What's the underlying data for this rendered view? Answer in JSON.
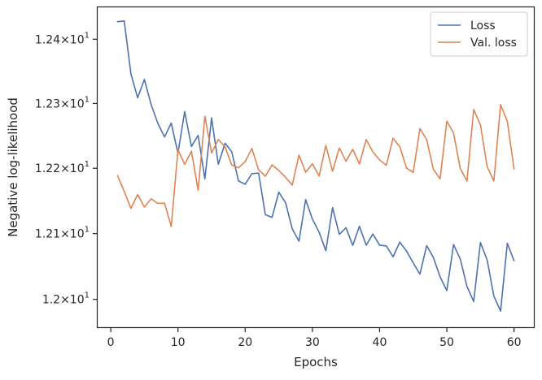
{
  "chart_data": {
    "type": "line",
    "xlabel": "Epochs",
    "ylabel": "Negative log-likelihood",
    "xlim": [
      -1.95,
      62.95
    ],
    "ylim": [
      11.958,
      12.45
    ],
    "y_scale": "log",
    "x_ticks": [
      0,
      10,
      20,
      30,
      40,
      50,
      60
    ],
    "x_tick_labels": [
      "0",
      "10",
      "20",
      "30",
      "40",
      "50",
      "60"
    ],
    "y_ticks": [
      12.0,
      12.1,
      12.2,
      12.3,
      12.4
    ],
    "y_tick_labels": [
      {
        "mantissa": "1.2",
        "exponent": "1"
      },
      {
        "mantissa": "1.21",
        "exponent": "1"
      },
      {
        "mantissa": "1.22",
        "exponent": "1"
      },
      {
        "mantissa": "1.23",
        "exponent": "1"
      },
      {
        "mantissa": "1.24",
        "exponent": "1"
      }
    ],
    "y_tick_times": "×10",
    "grid": false,
    "legend_position": "top-right",
    "x": [
      1,
      2,
      3,
      4,
      5,
      6,
      7,
      8,
      9,
      10,
      11,
      12,
      13,
      14,
      15,
      16,
      17,
      18,
      19,
      20,
      21,
      22,
      23,
      24,
      25,
      26,
      27,
      28,
      29,
      30,
      31,
      32,
      33,
      34,
      35,
      36,
      37,
      38,
      39,
      40,
      41,
      42,
      43,
      44,
      45,
      46,
      47,
      48,
      49,
      50,
      51,
      52,
      53,
      54,
      55,
      56,
      57,
      58,
      59,
      60
    ],
    "series": [
      {
        "name": "Loss",
        "color": "#4c72b0",
        "values": [
          12.4275,
          12.4286,
          12.3461,
          12.3088,
          12.3373,
          12.2985,
          12.2693,
          12.2483,
          12.2697,
          12.2232,
          12.2875,
          12.2336,
          12.2507,
          12.1838,
          12.2777,
          12.2061,
          12.2386,
          12.2255,
          12.1806,
          12.1754,
          12.1917,
          12.1925,
          12.1288,
          12.1247,
          12.1632,
          12.1474,
          12.1073,
          12.0883,
          12.1519,
          12.1221,
          12.1021,
          12.0738,
          12.1396,
          12.0989,
          12.1089,
          12.0819,
          12.1111,
          12.0822,
          12.0994,
          12.0823,
          12.0811,
          12.0646,
          12.0869,
          12.0735,
          12.0552,
          12.0383,
          12.0816,
          12.0636,
          12.0341,
          12.0133,
          12.0832,
          12.0613,
          12.0196,
          11.9968,
          12.0864,
          12.0598,
          12.0049,
          11.9823,
          12.0852,
          12.0587
        ]
      },
      {
        "name": "Val. loss",
        "color": "#dd8452",
        "values": [
          12.1889,
          12.1645,
          12.1384,
          12.1597,
          12.1404,
          12.1531,
          12.1462,
          12.1464,
          12.1107,
          12.2284,
          12.2061,
          12.2262,
          12.1661,
          12.2802,
          12.2236,
          12.2442,
          12.2331,
          12.2048,
          12.2007,
          12.2103,
          12.2305,
          12.1975,
          12.1878,
          12.2051,
          12.1965,
          12.1861,
          12.1741,
          12.2203,
          12.1938,
          12.2069,
          12.1881,
          12.2351,
          12.1954,
          12.2312,
          12.2108,
          12.2292,
          12.2065,
          12.2443,
          12.2251,
          12.2128,
          12.2045,
          12.2463,
          12.2331,
          12.2005,
          12.1935,
          12.2612,
          12.2442,
          12.1983,
          12.1838,
          12.2728,
          12.2542,
          12.1996,
          12.1803,
          12.2907,
          12.2669,
          12.2025,
          12.1804,
          12.2982,
          12.2723,
          12.1988
        ]
      }
    ]
  }
}
